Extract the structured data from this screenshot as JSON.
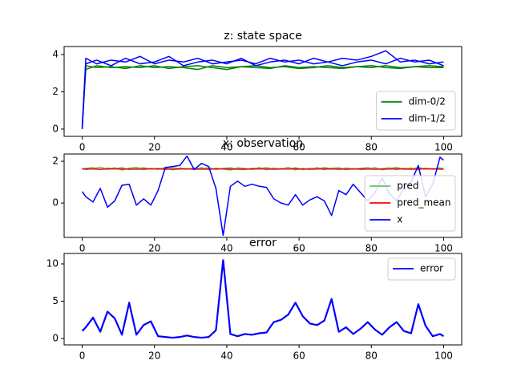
{
  "chart_data": [
    {
      "type": "line",
      "title": "z: state space",
      "legend": "lower right",
      "x": [
        0,
        1,
        4,
        8,
        12,
        16,
        20,
        24,
        28,
        32,
        36,
        40,
        44,
        48,
        52,
        56,
        60,
        64,
        68,
        72,
        76,
        80,
        84,
        88,
        92,
        96,
        100
      ],
      "xlim": [
        -5,
        105
      ],
      "ylim": [
        -0.39,
        4.43
      ],
      "xticks": [
        0,
        20,
        40,
        60,
        80,
        100
      ],
      "yticks": [
        0,
        2,
        4
      ],
      "series": [
        {
          "name": "dim-0/2",
          "color": "#008000",
          "values": [
            [
              0,
              3.4,
              3.3,
              3.35,
              3.25,
              3.4,
              3.3,
              3.35,
              3.3,
              3.2,
              3.4,
              3.3,
              3.35,
              3.3,
              3.25,
              3.4,
              3.3,
              3.35,
              3.3,
              3.25,
              3.35,
              3.3,
              3.4,
              3.3,
              3.35,
              3.3,
              3.3
            ],
            [
              0.1,
              3.2,
              3.4,
              3.3,
              3.35,
              3.3,
              3.4,
              3.25,
              3.35,
              3.4,
              3.3,
              3.2,
              3.35,
              3.4,
              3.3,
              3.35,
              3.25,
              3.3,
              3.4,
              3.3,
              3.35,
              3.4,
              3.3,
              3.25,
              3.35,
              3.4,
              3.35
            ]
          ]
        },
        {
          "name": "dim-1/2",
          "color": "#0000ff",
          "values": [
            [
              0,
              3.8,
              3.5,
              3.7,
              3.6,
              3.9,
              3.5,
              3.7,
              3.6,
              3.8,
              3.5,
              3.6,
              3.7,
              3.5,
              3.8,
              3.6,
              3.7,
              3.5,
              3.6,
              3.8,
              3.7,
              3.9,
              4.2,
              3.6,
              3.7,
              3.5,
              3.6
            ],
            [
              0.2,
              3.5,
              3.7,
              3.4,
              3.8,
              3.5,
              3.6,
              3.9,
              3.4,
              3.6,
              3.7,
              3.5,
              3.8,
              3.4,
              3.6,
              3.7,
              3.5,
              3.8,
              3.6,
              3.4,
              3.6,
              3.7,
              3.5,
              3.8,
              3.6,
              3.7,
              3.4
            ]
          ]
        }
      ]
    },
    {
      "type": "line",
      "title": "x: observation",
      "legend": "lower right",
      "x": [
        0,
        1,
        3,
        5,
        7,
        9,
        11,
        13,
        15,
        17,
        19,
        21,
        23,
        25,
        27,
        29,
        31,
        33,
        35,
        37,
        39,
        41,
        43,
        45,
        47,
        49,
        51,
        53,
        55,
        57,
        59,
        61,
        63,
        65,
        67,
        69,
        71,
        73,
        75,
        77,
        79,
        81,
        83,
        85,
        87,
        89,
        91,
        93,
        95,
        97,
        99,
        100
      ],
      "xlim": [
        -5,
        105
      ],
      "ylim": [
        -1.65,
        2.35
      ],
      "xticks": [
        0,
        20,
        40,
        60,
        80,
        100
      ],
      "yticks": [
        0,
        2
      ],
      "series": [
        {
          "name": "pred",
          "color": "#6fbf6f",
          "values": [
            [
              1.62,
              1.66,
              1.7,
              1.6,
              1.68,
              1.64,
              1.7,
              1.6,
              1.66,
              1.69,
              1.63,
              1.67,
              1.6,
              1.7,
              1.65,
              1.62,
              1.68,
              1.64,
              1.7,
              1.61,
              1.66,
              1.69,
              1.63,
              1.6,
              1.67,
              1.65,
              1.7,
              1.62,
              1.66,
              1.64,
              1.69,
              1.6,
              1.67,
              1.63,
              1.7,
              1.65,
              1.61,
              1.68,
              1.64,
              1.66,
              1.7,
              1.62,
              1.65,
              1.69,
              1.6,
              1.67,
              1.63,
              1.7,
              1.64,
              1.66,
              1.62,
              1.68
            ],
            [
              1.68,
              1.6,
              1.65,
              1.72,
              1.62,
              1.69,
              1.58,
              1.67,
              1.71,
              1.6,
              1.66,
              1.62,
              1.7,
              1.59,
              1.68,
              1.64,
              1.61,
              1.7,
              1.6,
              1.67,
              1.63,
              1.58,
              1.69,
              1.66,
              1.61,
              1.7,
              1.6,
              1.68,
              1.63,
              1.71,
              1.59,
              1.66,
              1.62,
              1.7,
              1.6,
              1.67,
              1.69,
              1.61,
              1.66,
              1.6,
              1.63,
              1.7,
              1.59,
              1.65,
              1.71,
              1.62,
              1.68,
              1.6,
              1.67,
              1.63,
              1.69,
              1.62
            ]
          ]
        },
        {
          "name": "pred_mean",
          "color": "#ff0000",
          "values": [
            [
              1.63,
              1.64,
              1.63,
              1.62,
              1.63,
              1.64,
              1.63,
              1.63,
              1.62,
              1.63,
              1.64,
              1.63,
              1.63,
              1.62,
              1.63,
              1.64,
              1.63,
              1.62,
              1.63,
              1.63,
              1.64,
              1.63,
              1.62,
              1.63,
              1.63,
              1.64,
              1.63,
              1.62,
              1.63,
              1.63,
              1.64,
              1.63,
              1.62,
              1.63,
              1.64,
              1.63,
              1.63,
              1.62,
              1.63,
              1.64,
              1.63,
              1.62,
              1.63,
              1.63,
              1.64,
              1.63,
              1.62,
              1.63,
              1.64,
              1.63,
              1.63,
              1.62
            ]
          ]
        },
        {
          "name": "x",
          "color": "#0000ff",
          "values": [
            [
              0.55,
              0.3,
              0.05,
              0.7,
              -0.2,
              0.1,
              0.85,
              0.9,
              -0.1,
              0.2,
              -0.1,
              0.6,
              1.7,
              1.75,
              1.8,
              2.25,
              1.6,
              1.9,
              1.75,
              0.7,
              -1.55,
              0.8,
              1.05,
              0.8,
              0.9,
              0.8,
              0.75,
              0.2,
              0.0,
              -0.1,
              0.4,
              -0.1,
              0.15,
              0.3,
              0.1,
              -0.6,
              0.6,
              0.4,
              0.9,
              0.5,
              0.1,
              0.5,
              1.2,
              0.45,
              0.1,
              0.7,
              1.0,
              1.8,
              0.3,
              0.9,
              2.2,
              2.05
            ]
          ]
        }
      ]
    },
    {
      "type": "line",
      "title": "error",
      "legend": "upper right",
      "x": [
        0,
        1,
        3,
        5,
        7,
        9,
        11,
        13,
        15,
        17,
        19,
        21,
        23,
        25,
        27,
        29,
        31,
        33,
        35,
        37,
        39,
        41,
        43,
        45,
        47,
        49,
        51,
        53,
        55,
        57,
        59,
        61,
        63,
        65,
        67,
        69,
        71,
        73,
        75,
        77,
        79,
        81,
        83,
        85,
        87,
        89,
        91,
        93,
        95,
        97,
        99,
        100
      ],
      "xlim": [
        -5,
        105
      ],
      "ylim": [
        -0.86,
        11.4
      ],
      "xticks": [
        0,
        20,
        40,
        60,
        80,
        100
      ],
      "yticks": [
        0,
        5,
        10
      ],
      "series": [
        {
          "name": "error",
          "color": "#0000ff",
          "values": [
            [
              1.0,
              1.5,
              2.8,
              0.9,
              3.6,
              2.7,
              0.5,
              4.8,
              0.5,
              1.8,
              2.3,
              0.3,
              0.2,
              0.1,
              0.2,
              0.4,
              0.2,
              0.1,
              0.2,
              1.1,
              10.5,
              0.6,
              0.3,
              0.6,
              0.5,
              0.7,
              0.8,
              2.2,
              2.5,
              3.2,
              4.8,
              3.0,
              2.0,
              1.8,
              2.4,
              5.3,
              0.9,
              1.5,
              0.6,
              1.3,
              2.2,
              1.2,
              0.5,
              1.5,
              2.2,
              1.0,
              0.7,
              4.6,
              1.7,
              0.3,
              0.6,
              0.3
            ]
          ]
        }
      ]
    }
  ]
}
